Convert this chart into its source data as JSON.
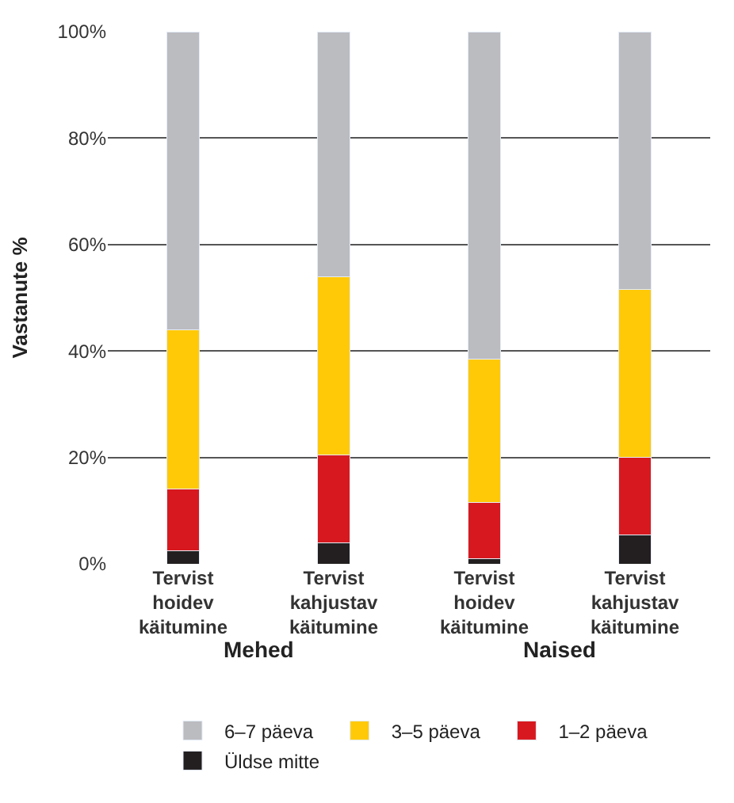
{
  "chart_data": {
    "type": "bar",
    "stacked": true,
    "ylabel": "Vastanute %",
    "categories": [
      "Tervist\nhoidev\nkäitumine",
      "Tervist\nkahjustav\nkäitumine",
      "Tervist\nhoidev\nkäitumine",
      "Tervist\nkahjustav\nkäitumine"
    ],
    "series": [
      {
        "name": "Üldse mitte",
        "color": "#231f20",
        "values": [
          2.5,
          4,
          1,
          5.5
        ]
      },
      {
        "name": "1–2 päeva",
        "color": "#d7191f",
        "values": [
          11.5,
          16.5,
          10.5,
          14.5
        ]
      },
      {
        "name": "3–5 päeva",
        "color": "#ffc907",
        "values": [
          30,
          33.5,
          27,
          31.5
        ]
      },
      {
        "name": "6–7 päeva",
        "color": "#bbbcc0",
        "values": [
          56,
          46,
          61.5,
          48.5
        ]
      }
    ],
    "ylim": [
      0,
      100
    ],
    "yticks": [
      {
        "value": 0,
        "label": "0%"
      },
      {
        "value": 20,
        "label": "20%"
      },
      {
        "value": 40,
        "label": "40%"
      },
      {
        "value": 60,
        "label": "60%"
      },
      {
        "value": 80,
        "label": "80%"
      },
      {
        "value": 100,
        "label": "100%"
      }
    ],
    "grid": "y",
    "legend": "bottom",
    "annotations": [
      "Mehed",
      "Naised"
    ]
  }
}
